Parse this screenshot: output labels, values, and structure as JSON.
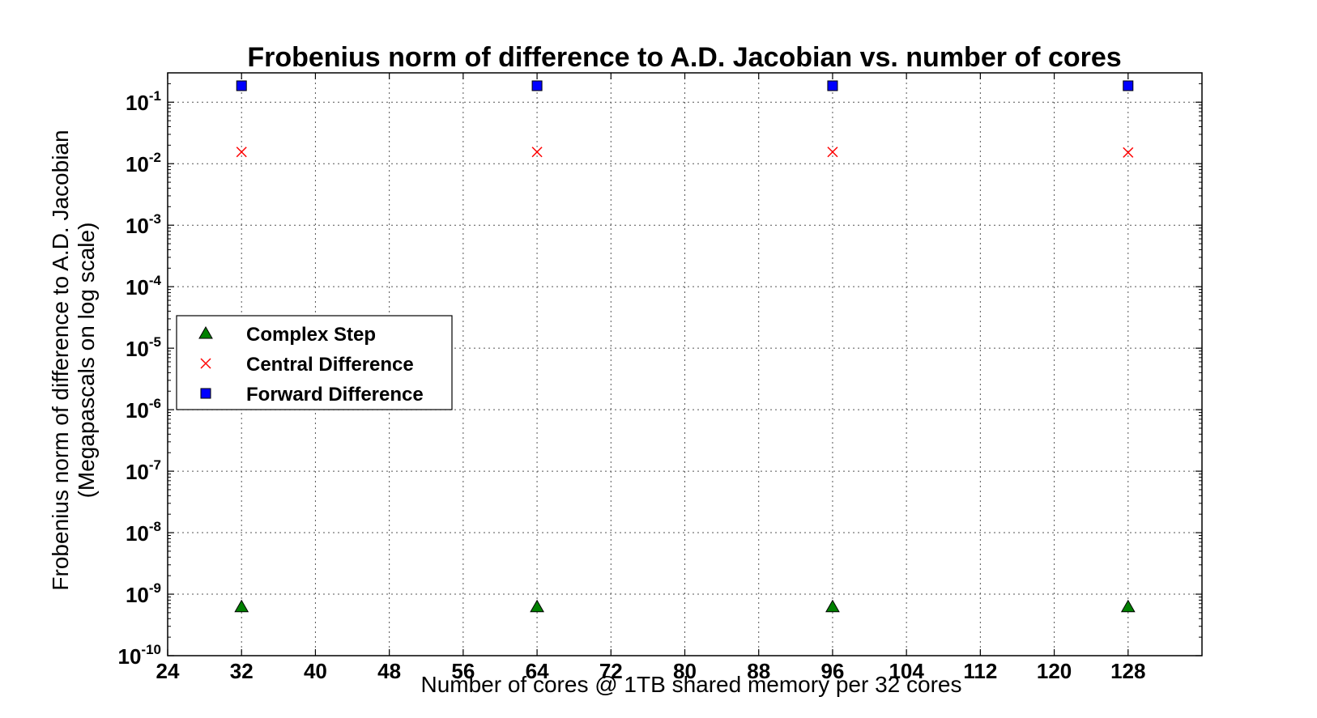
{
  "chart_data": {
    "type": "scatter",
    "title": "Frobenius norm of difference to A.D. Jacobian vs. number of cores",
    "xlabel": "Number of cores @ 1TB shared memory per 32 cores",
    "ylabel_line1": "Frobenius norm of difference to A.D. Jacobian",
    "ylabel_line2": "(Megapascals on log scale)",
    "xlim": [
      24,
      136
    ],
    "ylim": [
      1e-10,
      0.3
    ],
    "yscale": "log",
    "xticks": [
      24,
      32,
      40,
      48,
      56,
      64,
      72,
      80,
      88,
      96,
      104,
      112,
      120,
      128
    ],
    "yticks": [
      {
        "value": 1e-10,
        "base": "10",
        "exp": "-10"
      },
      {
        "value": 1e-09,
        "base": "10",
        "exp": "-9"
      },
      {
        "value": 1e-08,
        "base": "10",
        "exp": "-8"
      },
      {
        "value": 1e-07,
        "base": "10",
        "exp": "-7"
      },
      {
        "value": 1e-06,
        "base": "10",
        "exp": "-6"
      },
      {
        "value": 1e-05,
        "base": "10",
        "exp": "-5"
      },
      {
        "value": 0.0001,
        "base": "10",
        "exp": "-4"
      },
      {
        "value": 0.001,
        "base": "10",
        "exp": "-3"
      },
      {
        "value": 0.01,
        "base": "10",
        "exp": "-2"
      },
      {
        "value": 0.1,
        "base": "10",
        "exp": "-1"
      }
    ],
    "grid": true,
    "legend_position": "center-left",
    "series": [
      {
        "name": "Complex Step",
        "marker": "triangle",
        "color": "#008000",
        "x": [
          32,
          64,
          96,
          128
        ],
        "y": [
          6.2e-10,
          6.2e-10,
          6.2e-10,
          6.2e-10
        ]
      },
      {
        "name": "Central Difference",
        "marker": "x",
        "color": "#ff0000",
        "x": [
          32,
          64,
          96,
          128
        ],
        "y": [
          0.0155,
          0.0155,
          0.0155,
          0.0152
        ]
      },
      {
        "name": "Forward Difference",
        "marker": "square",
        "color": "#0000ff",
        "x": [
          32,
          64,
          96,
          128
        ],
        "y": [
          0.185,
          0.185,
          0.185,
          0.185
        ]
      }
    ]
  }
}
